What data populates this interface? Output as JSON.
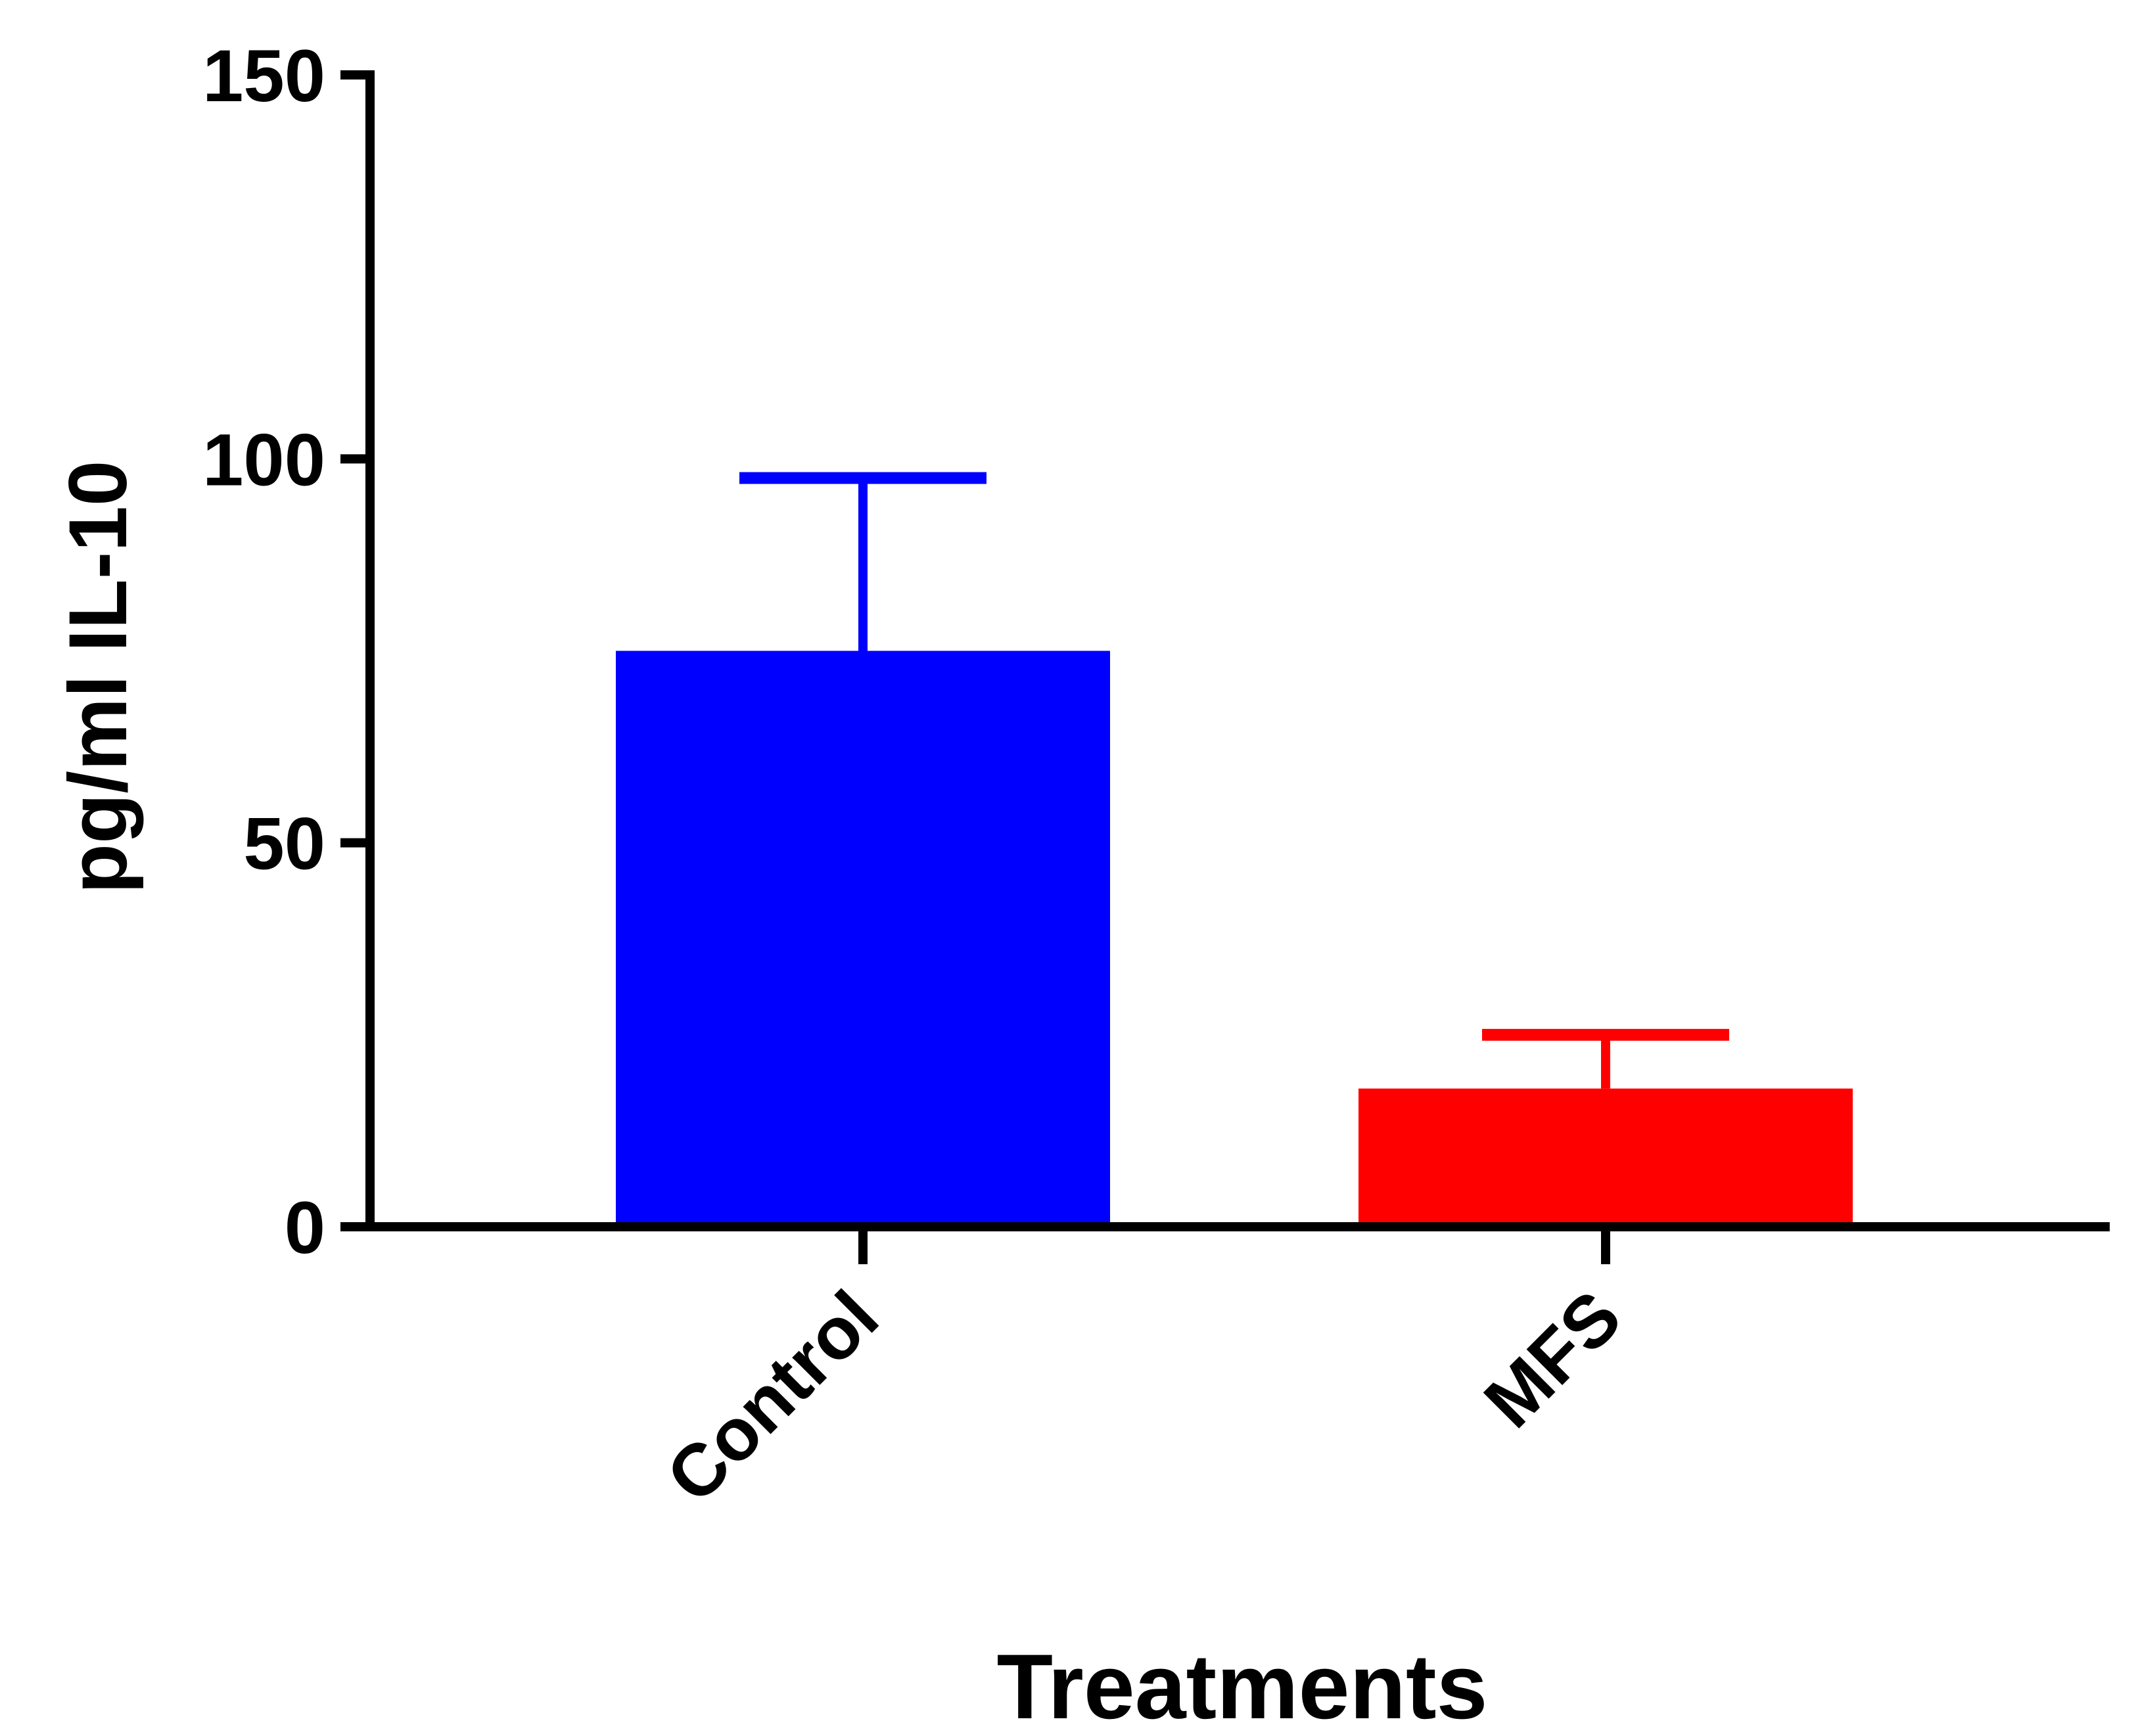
{
  "chart_data": {
    "type": "bar",
    "title": "",
    "xlabel": "Treatments",
    "ylabel": "pg/ml IL-10",
    "categories": [
      "Control",
      "MFS"
    ],
    "values": [
      75,
      18
    ],
    "error_bars": [
      22.5,
      7
    ],
    "error_bar_style": "upper",
    "colors": [
      "#0000ff",
      "#ff0000"
    ],
    "ylim": [
      0,
      150
    ],
    "yticks": [
      0,
      50,
      100,
      150
    ],
    "grid": false,
    "legend": "none"
  }
}
